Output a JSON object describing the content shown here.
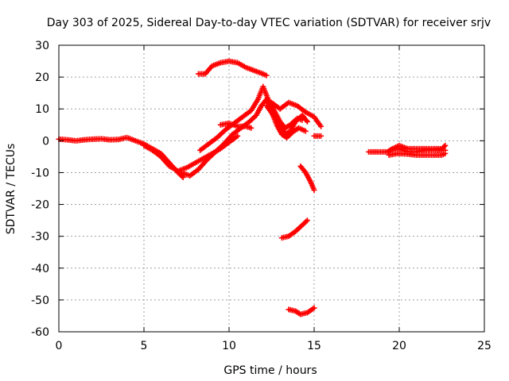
{
  "chart_data": {
    "type": "scatter",
    "title": "Day 303 of 2025, Sidereal Day-to-day VTEC variation (SDTVAR) for receiver srjv",
    "xlabel": "GPS time / hours",
    "ylabel": "SDTVAR / TECUs",
    "xlim": [
      0,
      25
    ],
    "ylim": [
      -60,
      30
    ],
    "xticks": [
      0,
      5,
      10,
      15,
      20,
      25
    ],
    "yticks": [
      -60,
      -50,
      -40,
      -30,
      -20,
      -10,
      0,
      10,
      20,
      30
    ],
    "grid": true,
    "marker": "+",
    "color": "#ff0000",
    "tracks": [
      [
        [
          0,
          0.5
        ],
        [
          0.5,
          0.3
        ],
        [
          1,
          0
        ],
        [
          1.5,
          0.3
        ],
        [
          2,
          0.5
        ],
        [
          2.5,
          0.6
        ],
        [
          3,
          0.3
        ],
        [
          3.5,
          0.4
        ],
        [
          4,
          1.0
        ],
        [
          4.5,
          0
        ],
        [
          5,
          -1
        ],
        [
          5.5,
          -2.5
        ],
        [
          6,
          -4
        ],
        [
          6.5,
          -7
        ],
        [
          7,
          -10
        ],
        [
          7.3,
          -11.5
        ]
      ],
      [
        [
          5,
          -1.5
        ],
        [
          5.5,
          -3
        ],
        [
          6,
          -5
        ],
        [
          6.5,
          -8
        ],
        [
          7,
          -9.5
        ],
        [
          7.5,
          -8.5
        ],
        [
          8,
          -7
        ],
        [
          8.5,
          -5.5
        ],
        [
          9,
          -4
        ],
        [
          9.5,
          -2.5
        ],
        [
          10,
          -0.5
        ],
        [
          10.5,
          1.5
        ]
      ],
      [
        [
          7.2,
          -10
        ],
        [
          7.7,
          -11
        ],
        [
          8.2,
          -9
        ],
        [
          8.7,
          -6
        ],
        [
          9.2,
          -3.5
        ],
        [
          9.7,
          -1
        ],
        [
          10.2,
          2
        ],
        [
          10.7,
          4
        ],
        [
          11.2,
          6
        ],
        [
          11.6,
          8
        ],
        [
          11.9,
          11
        ],
        [
          12.2,
          13
        ],
        [
          12.5,
          9
        ],
        [
          12.8,
          5
        ],
        [
          13.1,
          2
        ],
        [
          13.4,
          1
        ],
        [
          13.8,
          3
        ],
        [
          14.1,
          4
        ],
        [
          14.5,
          3
        ]
      ],
      [
        [
          8.3,
          -3
        ],
        [
          8.8,
          -1
        ],
        [
          9.3,
          1
        ],
        [
          9.8,
          3.5
        ],
        [
          10.3,
          5.5
        ],
        [
          10.8,
          7.5
        ],
        [
          11.3,
          9.5
        ],
        [
          11.7,
          13
        ],
        [
          12,
          17
        ],
        [
          12.3,
          13
        ],
        [
          12.7,
          9
        ],
        [
          13,
          6
        ],
        [
          13.3,
          4
        ],
        [
          13.6,
          5
        ],
        [
          14,
          7
        ],
        [
          14.3,
          6.5
        ]
      ],
      [
        [
          9.5,
          5
        ],
        [
          10,
          5.5
        ],
        [
          10.5,
          4.5
        ],
        [
          11,
          4.5
        ],
        [
          11.3,
          4
        ]
      ],
      [
        [
          12.2,
          11
        ],
        [
          12.6,
          8
        ],
        [
          13,
          5
        ],
        [
          13.3,
          2
        ],
        [
          13.6,
          3
        ],
        [
          13.9,
          6
        ],
        [
          14.3,
          8
        ],
        [
          14.6,
          6
        ]
      ],
      [
        [
          12.5,
          12
        ],
        [
          13,
          10
        ],
        [
          13.5,
          12
        ],
        [
          14,
          11
        ],
        [
          14.5,
          9
        ],
        [
          15,
          7.5
        ],
        [
          15.4,
          4.5
        ]
      ],
      [
        [
          8.2,
          21
        ],
        [
          8.6,
          21
        ],
        [
          9,
          23.5
        ],
        [
          9.5,
          24.5
        ],
        [
          10,
          25
        ],
        [
          10.5,
          24.5
        ],
        [
          11,
          23
        ],
        [
          11.5,
          22
        ],
        [
          12,
          21
        ],
        [
          12.2,
          20.5
        ]
      ],
      [
        [
          15,
          1.5
        ],
        [
          15.4,
          1.5
        ]
      ],
      [
        [
          14.2,
          -8
        ],
        [
          14.5,
          -10
        ],
        [
          14.8,
          -13
        ],
        [
          15,
          -15.5
        ]
      ],
      [
        [
          13.1,
          -30.5
        ],
        [
          13.5,
          -30
        ],
        [
          13.9,
          -28.5
        ],
        [
          14.3,
          -26.5
        ],
        [
          14.6,
          -25
        ]
      ],
      [
        [
          13.5,
          -53
        ],
        [
          13.9,
          -53.5
        ],
        [
          14.2,
          -54.5
        ],
        [
          14.6,
          -54
        ],
        [
          15,
          -52.5
        ]
      ],
      [
        [
          18.2,
          -3.5
        ],
        [
          18.8,
          -3.5
        ],
        [
          19.3,
          -3.5
        ],
        [
          19.6,
          -2.5
        ],
        [
          20,
          -1.5
        ],
        [
          20.5,
          -2.5
        ],
        [
          21,
          -2.5
        ],
        [
          21.5,
          -2.5
        ],
        [
          22,
          -2.5
        ],
        [
          22.5,
          -2.5
        ],
        [
          22.7,
          -1.5
        ]
      ],
      [
        [
          19.4,
          -4.5
        ],
        [
          19.9,
          -4
        ],
        [
          20.5,
          -4.2
        ],
        [
          21,
          -4.5
        ],
        [
          21.5,
          -4.5
        ],
        [
          22,
          -4.5
        ],
        [
          22.5,
          -4.5
        ],
        [
          22.7,
          -4
        ]
      ],
      [
        [
          19.5,
          -3
        ],
        [
          20,
          -2.5
        ],
        [
          20.5,
          -3.5
        ],
        [
          21,
          -3.5
        ],
        [
          21.5,
          -3
        ],
        [
          22,
          -3
        ],
        [
          22.7,
          -3
        ]
      ]
    ]
  }
}
